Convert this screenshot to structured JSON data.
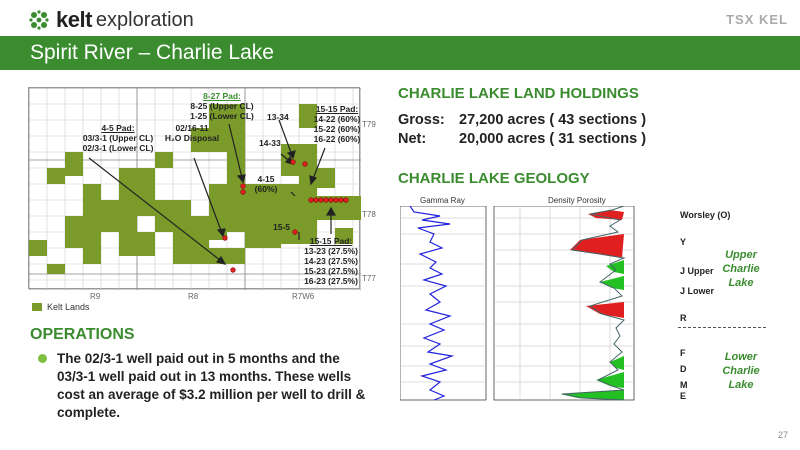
{
  "header": {
    "brand": "kelt",
    "brand_sub": "exploration",
    "exchange_logo": "TSX KEL",
    "title": "Spirit River – Charlie Lake"
  },
  "map": {
    "township_labels": [
      "T79",
      "T78",
      "T77"
    ],
    "range_labels": [
      "R9",
      "R8",
      "R7W6"
    ],
    "callouts": {
      "c827_title": "8-27 Pad:",
      "c827_l1": "8-25 (Upper CL)",
      "c827_l2": "1-25 (Lower CL)",
      "c45_title": "4-5 Pad:",
      "c45_l1": "03/3-1 (Upper CL)",
      "c45_l2": "02/3-1 (Lower CL)",
      "c0216_l1": "02/16-11",
      "c0216_l2": "H₂O Disposal",
      "c1334": "13-34",
      "c1433": "14-33",
      "c1515a_title": "15-15 Pad:",
      "c1515a_l1": "14-22 (60%)",
      "c1515a_l2": "15-22 (60%)",
      "c1515a_l3": "16-22 (60%)",
      "c415_l1": "4-15",
      "c415_l2": "(60%)",
      "c155": "15-5",
      "c1515b_title": "15-15 Pad:",
      "c1515b_l1": "13-23 (27.5%)",
      "c1515b_l2": "14-23 (27.5%)",
      "c1515b_l3": "15-23 (27.5%)",
      "c1515b_l4": "16-23 (27.5%)"
    },
    "legend_label": "Kelt Lands"
  },
  "operations": {
    "heading": "OPERATIONS",
    "bullet": "The 02/3-1 well paid out in 5 months and the 03/3-1 well paid out in 13 months. These wells cost an average of $3.2 million per well to drill & complete."
  },
  "land": {
    "heading": "CHARLIE LAKE LAND HOLDINGS",
    "gross_label": "Gross:",
    "gross_value": "27,200 acres ( 43 sections )",
    "net_label": "Net:",
    "net_value": "20,000 acres ( 31 sections )"
  },
  "geology": {
    "heading": "CHARLIE LAKE GEOLOGY",
    "log1_label": "Gamma Ray",
    "log2_label": "Density Porosity",
    "zones": [
      "Worsley (O)",
      "Y",
      "J Upper",
      "J Lower",
      "R",
      "F",
      "D",
      "M",
      "E"
    ],
    "upper_group": "Upper Charlie Lake",
    "lower_group": "Lower Charlie Lake"
  },
  "colors": {
    "brand_green": "#3a8c2f",
    "land_green": "#7a9a2a",
    "porosity_red": "#e02020",
    "porosity_green": "#22c022",
    "gamma_blue": "#2222dd"
  },
  "page_number": "27"
}
